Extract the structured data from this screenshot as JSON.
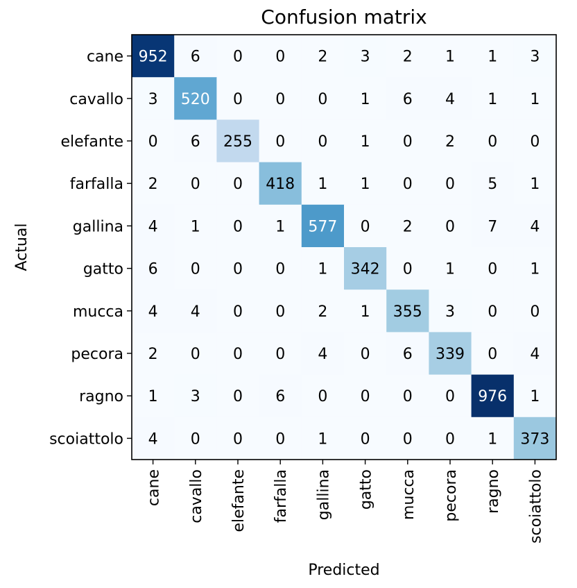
{
  "chart_data": {
    "type": "heatmap",
    "title": "Confusion matrix",
    "xlabel": "Predicted",
    "ylabel": "Actual",
    "colormap": "Blues",
    "x_categories": [
      "cane",
      "cavallo",
      "elefante",
      "farfalla",
      "gallina",
      "gatto",
      "mucca",
      "pecora",
      "ragno",
      "scoiattolo"
    ],
    "y_categories": [
      "cane",
      "cavallo",
      "elefante",
      "farfalla",
      "gallina",
      "gatto",
      "mucca",
      "pecora",
      "ragno",
      "scoiattolo"
    ],
    "values": [
      [
        952,
        6,
        0,
        0,
        2,
        3,
        2,
        1,
        1,
        3
      ],
      [
        3,
        520,
        0,
        0,
        0,
        1,
        6,
        4,
        1,
        1
      ],
      [
        0,
        6,
        255,
        0,
        0,
        1,
        0,
        2,
        0,
        0
      ],
      [
        2,
        0,
        0,
        418,
        1,
        1,
        0,
        0,
        5,
        1
      ],
      [
        4,
        1,
        0,
        1,
        577,
        0,
        2,
        0,
        7,
        4
      ],
      [
        6,
        0,
        0,
        0,
        1,
        342,
        0,
        1,
        0,
        1
      ],
      [
        4,
        4,
        0,
        0,
        2,
        1,
        355,
        3,
        0,
        0
      ],
      [
        2,
        0,
        0,
        0,
        4,
        0,
        6,
        339,
        0,
        4
      ],
      [
        1,
        3,
        0,
        6,
        0,
        0,
        0,
        0,
        976,
        1
      ],
      [
        4,
        0,
        0,
        0,
        1,
        0,
        0,
        0,
        1,
        373
      ]
    ],
    "value_range": [
      0,
      976
    ],
    "grid": false
  }
}
